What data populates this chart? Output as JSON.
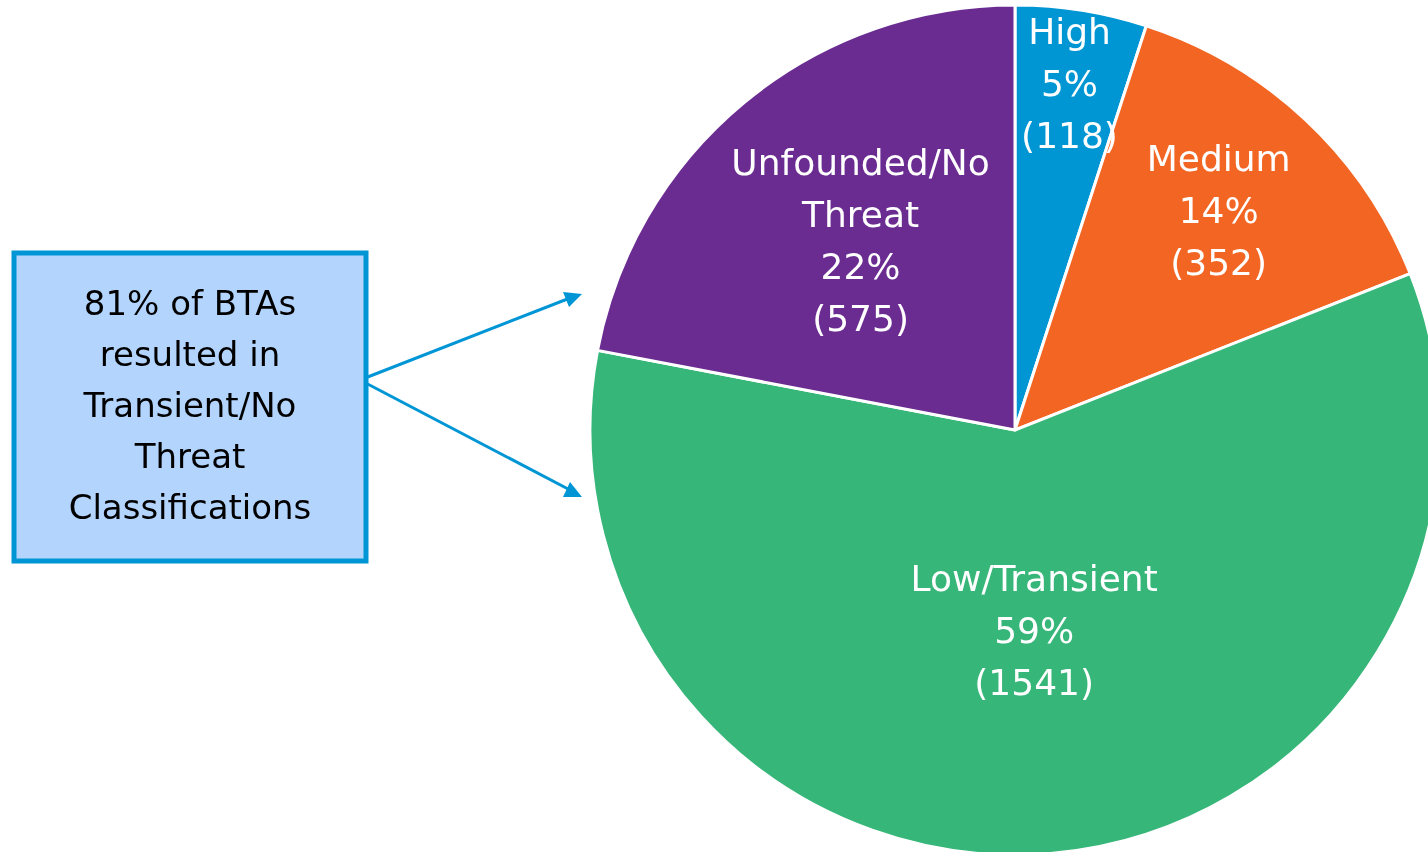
{
  "chart_data": {
    "type": "pie",
    "categories": [
      "High",
      "Medium",
      "Low/Transient",
      "Unfounded/No Threat"
    ],
    "values": [
      5,
      14,
      59,
      22
    ],
    "value_labels": [
      "5% (118)",
      "14% (352)",
      "59% (1541)",
      "22% (575)"
    ],
    "colors": [
      "#0095d3",
      "#f26522",
      "#37b679",
      "#6a2c91"
    ],
    "annotations": [
      "81% of BTAs resulted in Transient/No Threat Classifications"
    ]
  }
}
